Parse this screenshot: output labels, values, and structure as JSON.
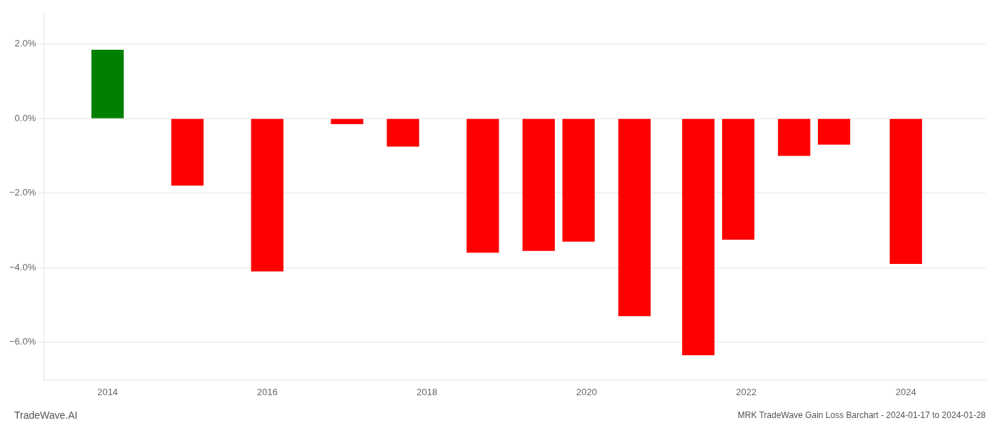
{
  "chart_data": {
    "type": "bar",
    "title": "MRK TradeWave Gain Loss Barchart - 2024-01-17 to 2024-01-28",
    "annotations": [
      {
        "text": "TradeWave.AI"
      }
    ],
    "x": [
      2014.0,
      2015.0,
      2016.0,
      2017.0,
      2017.7,
      2018.7,
      2019.4,
      2019.9,
      2020.6,
      2021.4,
      2021.9,
      2022.6,
      2023.1,
      2024.0
    ],
    "values": [
      1.85,
      -1.8,
      -4.1,
      -0.15,
      -0.75,
      -3.6,
      -3.55,
      -3.3,
      -5.3,
      -6.35,
      -3.25,
      -1.0,
      -0.7,
      -3.9
    ],
    "colors": [
      "#008000",
      "#ff0000",
      "#ff0000",
      "#ff0000",
      "#ff0000",
      "#ff0000",
      "#ff0000",
      "#ff0000",
      "#ff0000",
      "#ff0000",
      "#ff0000",
      "#ff0000",
      "#ff0000",
      "#ff0000"
    ],
    "xlim": [
      2013.2,
      2025.0
    ],
    "xticks": [
      2014,
      2016,
      2018,
      2020,
      2022,
      2024
    ],
    "ylim": [
      -7.0,
      2.8
    ],
    "yticks": [
      {
        "value": -6.0,
        "label": "−6.0%"
      },
      {
        "value": -4.0,
        "label": "−4.0%"
      },
      {
        "value": -2.0,
        "label": "−2.0%"
      },
      {
        "value": 0.0,
        "label": "0.0%"
      },
      {
        "value": 2.0,
        "label": "2.0%"
      }
    ],
    "grid": true
  }
}
